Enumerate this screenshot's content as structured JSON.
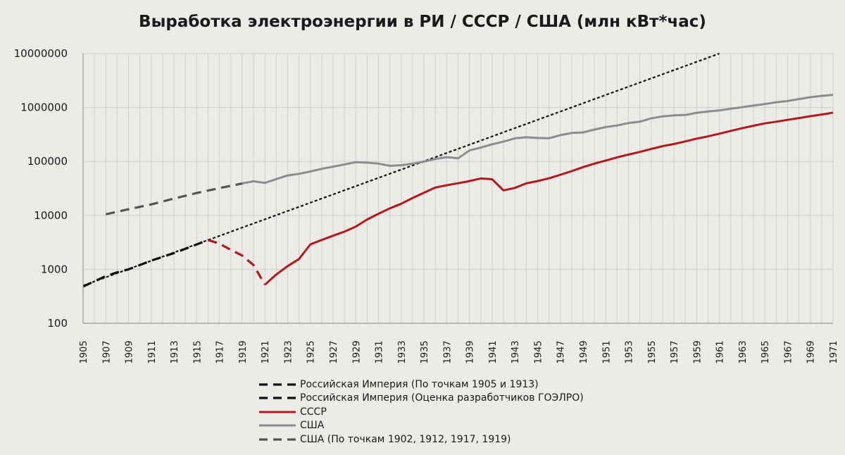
{
  "chart_data": {
    "type": "line",
    "title": "Выработка электроэнергии в РИ / СССР / США (млн кВт*час)",
    "yscale": "log",
    "ylim": [
      100,
      10000000
    ],
    "yticks": [
      "100",
      "1000",
      "10000",
      "100000",
      "1000000",
      "10000000"
    ],
    "xlim": [
      1905,
      1971
    ],
    "xticks": [
      "1905",
      "1907",
      "1909",
      "1911",
      "1913",
      "1915",
      "1917",
      "1919",
      "1921",
      "1923",
      "1925",
      "1927",
      "1929",
      "1931",
      "1933",
      "1935",
      "1937",
      "1939",
      "1941",
      "1943",
      "1945",
      "1947",
      "1949",
      "1951",
      "1953",
      "1955",
      "1957",
      "1959",
      "1961",
      "1963",
      "1965",
      "1967",
      "1969",
      "1971"
    ],
    "grid": true,
    "legend_position": "bottom",
    "colors": {
      "ri": "#111111",
      "ussr": "#b01a1a",
      "usa": "#8c8c8c",
      "usa_est": "#555555",
      "grid": "#cfcfcf"
    },
    "series": [
      {
        "name": "Российская Империя (По точкам 1905 и 1913)",
        "style": "dotted",
        "color": "#111111",
        "x": [
          1905,
          1961
        ],
        "y": [
          500,
          10000000
        ]
      },
      {
        "name": "Российская Империя (Оценка разработчиков ГОЭЛРО)",
        "style": "dashed",
        "color": "#111111",
        "x": [
          1905,
          1906,
          1907,
          1908,
          1909,
          1910,
          1911,
          1912,
          1913,
          1914,
          1915,
          1916
        ],
        "y": [
          480,
          600,
          750,
          880,
          1000,
          1200,
          1450,
          1700,
          2000,
          2400,
          2900,
          3500
        ]
      },
      {
        "name": "",
        "style": "dashed",
        "color": "#b01a1a",
        "x": [
          1916,
          1917,
          1918,
          1919,
          1920,
          1921
        ],
        "y": [
          3500,
          3000,
          2300,
          1800,
          1200,
          520
        ]
      },
      {
        "name": "СССР",
        "style": "solid",
        "color": "#b01a1a",
        "x": [
          1921,
          1922,
          1923,
          1924,
          1925,
          1926,
          1927,
          1928,
          1929,
          1930,
          1931,
          1932,
          1933,
          1934,
          1935,
          1936,
          1937,
          1938,
          1939,
          1940,
          1941,
          1942,
          1943,
          1944,
          1945,
          1946,
          1947,
          1948,
          1949,
          1950,
          1951,
          1952,
          1953,
          1954,
          1955,
          1956,
          1957,
          1958,
          1959,
          1960,
          1961,
          1962,
          1963,
          1964,
          1965,
          1966,
          1967,
          1968,
          1969,
          1970,
          1971
        ],
        "y": [
          520,
          800,
          1150,
          1550,
          2900,
          3500,
          4200,
          5000,
          6200,
          8400,
          10700,
          13500,
          16400,
          21000,
          26300,
          32800,
          36200,
          39400,
          43200,
          48300,
          46700,
          29100,
          32300,
          39200,
          43300,
          48600,
          56500,
          66300,
          78300,
          91200,
          104000,
          119000,
          134000,
          150000,
          170000,
          192000,
          210000,
          235000,
          265000,
          292000,
          327000,
          369000,
          412000,
          459000,
          507000,
          545000,
          589000,
          638000,
          689000,
          741000,
          800000
        ]
      },
      {
        "name": "США",
        "style": "solid",
        "color": "#8c8c8c",
        "x": [
          1919,
          1920,
          1921,
          1922,
          1923,
          1924,
          1925,
          1926,
          1927,
          1928,
          1929,
          1930,
          1931,
          1932,
          1933,
          1934,
          1935,
          1936,
          1937,
          1938,
          1939,
          1940,
          1941,
          1942,
          1943,
          1944,
          1945,
          1946,
          1947,
          1948,
          1949,
          1950,
          1951,
          1952,
          1953,
          1954,
          1955,
          1956,
          1957,
          1958,
          1959,
          1960,
          1961,
          1962,
          1963,
          1964,
          1965,
          1966,
          1967,
          1968,
          1969,
          1970,
          1971
        ],
        "y": [
          39000,
          43000,
          40000,
          47000,
          55000,
          59000,
          65000,
          73000,
          80000,
          88000,
          97000,
          95000,
          91000,
          83000,
          85000,
          91000,
          99000,
          111000,
          120000,
          114000,
          160000,
          180000,
          208000,
          233000,
          268000,
          280000,
          272000,
          269000,
          307000,
          337000,
          345000,
          389000,
          433000,
          463000,
          514000,
          545000,
          629000,
          684000,
          716000,
          724000,
          797000,
          844000,
          881000,
          946000,
          1011000,
          1083000,
          1157000,
          1249000,
          1317000,
          1436000,
          1552000,
          1640000,
          1718000
        ]
      },
      {
        "name": "США (По точкам 1902, 1912, 1917, 1919)",
        "style": "dashed",
        "color": "#555555",
        "x": [
          1907,
          1909,
          1911,
          1913,
          1915,
          1917,
          1919
        ],
        "y": [
          10500,
          13000,
          16000,
          20500,
          26000,
          32000,
          39000
        ]
      }
    ]
  }
}
